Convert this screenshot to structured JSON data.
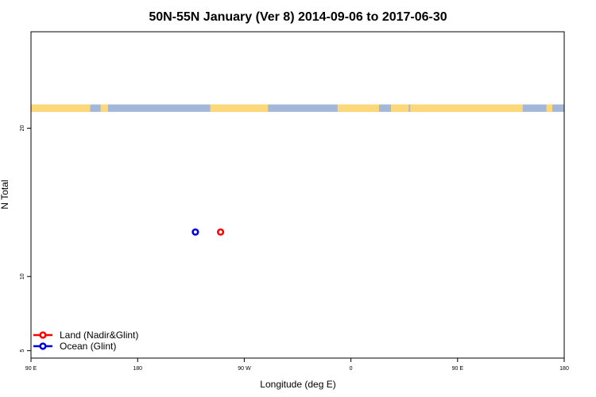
{
  "chart_data": {
    "type": "scatter",
    "title": "50N-55N January (Ver 8)   2014-09-06 to 2017-06-30",
    "xlabel": "Longitude (deg E)",
    "ylabel": "N Total",
    "xlim": [
      90,
      450
    ],
    "ylim": [
      4.5,
      26.5
    ],
    "x_ticks": [
      {
        "value": 90,
        "label": "90 E"
      },
      {
        "value": 162,
        "label": "180"
      },
      {
        "value": 234,
        "label": "90 W"
      },
      {
        "value": 306,
        "label": "0"
      },
      {
        "value": 378,
        "label": "90 E"
      },
      {
        "value": 450,
        "label": "180"
      }
    ],
    "y_ticks": [
      {
        "value": 5,
        "label": "5"
      },
      {
        "value": 10,
        "label": "10"
      },
      {
        "value": 20,
        "label": "20"
      }
    ],
    "series": [
      {
        "name": "Land (Nadir&Glint)",
        "color": "#ff0000",
        "points": [
          {
            "x": 218,
            "y": 13.0
          }
        ]
      },
      {
        "name": "Ocean (Glint)",
        "color": "#0000dd",
        "points": [
          {
            "x": 201,
            "y": 13.0
          }
        ]
      }
    ],
    "legend_position": "bottom-left",
    "grid": false,
    "land_strip": {
      "land_color": "#fdd878",
      "ocean_color": "#a3b8d8",
      "y_range": [
        21.1,
        21.6
      ],
      "land_segments": [
        [
          90,
          130
        ],
        [
          137,
          142
        ],
        [
          211,
          250
        ],
        [
          297,
          325
        ],
        [
          333,
          345
        ],
        [
          346,
          422
        ],
        [
          438,
          442
        ]
      ]
    }
  }
}
